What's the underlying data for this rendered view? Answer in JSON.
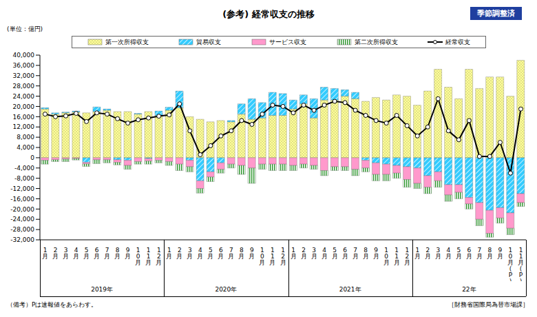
{
  "chart_data": {
    "type": "bar",
    "title": "(参考) 経常収支の推移",
    "annotations": {
      "badge": "季節調整済",
      "unit": "(単位：億円)",
      "footnote": "（備考）Pは速報値をあらわす。",
      "source": "［財務省国際局為替市場課］"
    },
    "year_labels": [
      "2019年",
      "2020年",
      "2021年",
      "22年"
    ],
    "stacked": true,
    "grid": false,
    "categories": [
      "1月",
      "2月",
      "3月",
      "4月",
      "5月",
      "6月",
      "7月",
      "8月",
      "9月",
      "10月",
      "11月",
      "12月",
      "1月",
      "2月",
      "3月",
      "4月",
      "5月",
      "6月",
      "7月",
      "8月",
      "9月",
      "10月",
      "11月",
      "12月",
      "1月",
      "2月",
      "3月",
      "4月",
      "5月",
      "6月",
      "7月",
      "8月",
      "9月",
      "10月",
      "11月",
      "12月",
      "1月",
      "2月",
      "3月",
      "4月",
      "5月",
      "6月",
      "7月",
      "8月",
      "9月",
      "10月(P)",
      "11月(P)"
    ],
    "ylim": [
      -32000,
      40000
    ],
    "yticks": [
      {
        "value": -32000,
        "label": "-32,000"
      },
      {
        "value": -28000,
        "label": "-28,000"
      },
      {
        "value": -24000,
        "label": "-24,000"
      },
      {
        "value": -20000,
        "label": "-20,000"
      },
      {
        "value": -16000,
        "label": "-16,000"
      },
      {
        "value": -12000,
        "label": "-12,000"
      },
      {
        "value": -8000,
        "label": "-8,000"
      },
      {
        "value": -4000,
        "label": "-4,000"
      },
      0,
      {
        "value": 4000,
        "label": "4,000"
      },
      {
        "value": 8000,
        "label": "8,000"
      },
      {
        "value": 12000,
        "label": "12,000"
      },
      {
        "value": 16000,
        "label": "16,000"
      },
      {
        "value": 20000,
        "label": "20,000"
      },
      {
        "value": 24000,
        "label": "24,000"
      },
      {
        "value": 28000,
        "label": "28,000"
      },
      {
        "value": 32000,
        "label": "32,000"
      },
      {
        "value": 36000,
        "label": "36,000"
      },
      {
        "value": 40000,
        "label": "40,000"
      }
    ],
    "series": [
      {
        "name": "第一次所得収支",
        "type": "bar",
        "color": "#ffff99",
        "values": [
          19000,
          17000,
          17500,
          17800,
          17500,
          18000,
          18500,
          18000,
          18000,
          17000,
          18000,
          16500,
          18500,
          19500,
          16000,
          15000,
          14000,
          14500,
          14000,
          17000,
          15000,
          15500,
          16500,
          16500,
          19000,
          21000,
          15500,
          22500,
          22500,
          24000,
          23000,
          22000,
          23500,
          22500,
          24500,
          24000,
          20500,
          26000,
          34500,
          27500,
          23000,
          34500,
          27000,
          31500,
          31500,
          24000,
          38000
        ]
      },
      {
        "name": "貿易収支",
        "type": "bar",
        "color": "#33ccff",
        "values": [
          500,
          500,
          300,
          400,
          -1800,
          1800,
          500,
          -800,
          -1000,
          300,
          -300,
          1700,
          1200,
          6500,
          -1000,
          -9000,
          -5500,
          -2000,
          500,
          4000,
          8000,
          6000,
          9000,
          8500,
          3500,
          3500,
          7500,
          5000,
          4500,
          2500,
          2500,
          -1000,
          -2000,
          -2500,
          -3000,
          -3500,
          -4000,
          -7000,
          -5500,
          -10500,
          -10500,
          -15500,
          -17500,
          -20500,
          -19500,
          -21500,
          -14000
        ]
      },
      {
        "name": "サービス収支",
        "type": "bar",
        "color": "#ff99cc",
        "values": [
          -1000,
          -800,
          -500,
          -300,
          -600,
          -800,
          -800,
          -1000,
          -2000,
          -1500,
          -1000,
          -1000,
          -1500,
          -2500,
          -2500,
          -3000,
          -2000,
          -2500,
          -2500,
          -3000,
          -4000,
          -2500,
          -2500,
          -2500,
          -3000,
          -2500,
          -3000,
          -5000,
          -3500,
          -3500,
          -4500,
          -3000,
          -4500,
          -4000,
          -3000,
          -5000,
          -6000,
          -4500,
          -3500,
          -4000,
          -3000,
          -2500,
          -6500,
          -9000,
          -4000,
          -6000,
          -3500
        ]
      },
      {
        "name": "第二次所得収支",
        "type": "bar",
        "color": "#339933",
        "values": [
          -1500,
          -700,
          -1000,
          -600,
          -1000,
          -1500,
          -1200,
          -1000,
          -1500,
          -1000,
          -1200,
          -1000,
          -1500,
          -2500,
          -2000,
          -1800,
          -1800,
          -1500,
          -1500,
          -3500,
          -6000,
          -2000,
          -2500,
          -2500,
          -2000,
          -1500,
          -1500,
          -2000,
          -1500,
          -1500,
          -2500,
          -1500,
          -2500,
          -2500,
          -2000,
          -3000,
          -2000,
          -2500,
          -2500,
          -2500,
          -2500,
          -2000,
          -2500,
          -1500,
          -2000,
          -2500,
          -1500
        ]
      },
      {
        "name": "経常収支",
        "type": "line",
        "color": "#000000",
        "marker": "circle",
        "values": [
          17000,
          16000,
          16300,
          17300,
          14100,
          17500,
          17000,
          15200,
          13500,
          14800,
          15500,
          16200,
          16700,
          21000,
          10500,
          1200,
          4700,
          8500,
          10500,
          14500,
          13000,
          17000,
          20500,
          20000,
          17500,
          20500,
          18500,
          20500,
          22000,
          21500,
          18500,
          16500,
          14500,
          13500,
          16500,
          12500,
          8500,
          12000,
          23000,
          10500,
          7000,
          14500,
          500,
          500,
          6000,
          -6000,
          19000
        ]
      }
    ]
  }
}
